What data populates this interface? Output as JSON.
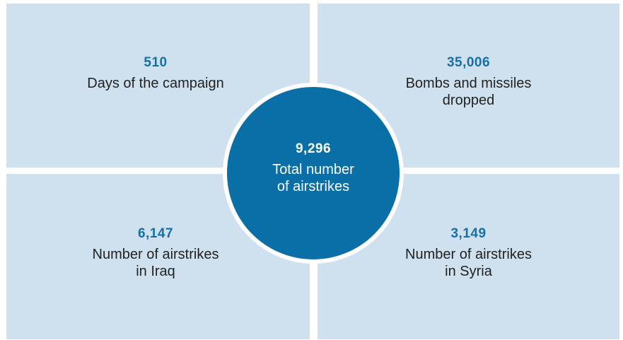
{
  "quadrants": {
    "top_left": {
      "value": "510",
      "label": "Days of the campaign"
    },
    "top_right": {
      "value": "35,006",
      "label_line1": "Bombs and missiles",
      "label_line2": "dropped"
    },
    "bottom_left": {
      "value": "6,147",
      "label_line1": "Number of airstrikes",
      "label_line2": "in Iraq"
    },
    "bottom_right": {
      "value": "3,149",
      "label_line1": "Number of airstrikes",
      "label_line2": "in Syria"
    }
  },
  "center": {
    "value": "9,296",
    "label_line1": "Total number",
    "label_line2": "of airstrikes"
  },
  "colors": {
    "panel": "#cfe0ee",
    "accent": "#1670a8",
    "circle": "#0a6fa6",
    "text": "#222222"
  }
}
